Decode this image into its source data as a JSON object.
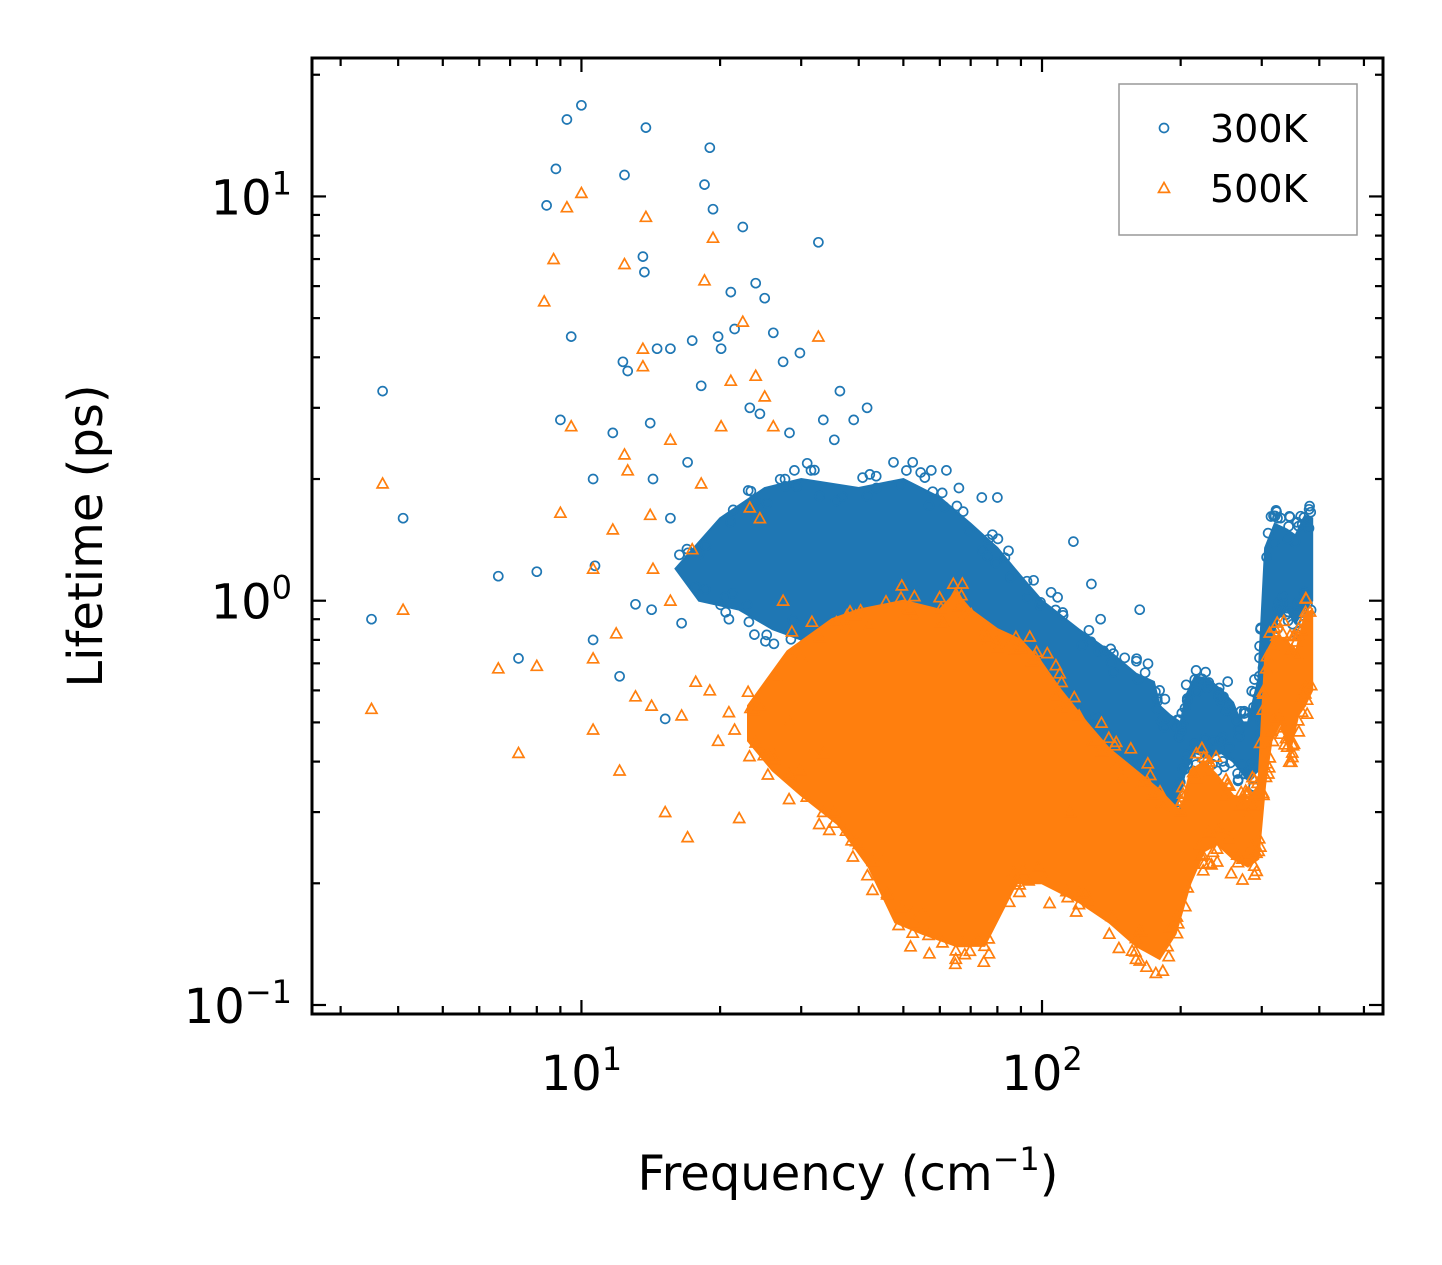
{
  "chart_data": {
    "type": "scatter",
    "title": "",
    "xlabel_main": "Frequency (cm",
    "xlabel_sup": "−1",
    "xlabel_close": ")",
    "ylabel": "Lifetime (ps)",
    "xscale": "log",
    "yscale": "log",
    "xlim": [
      2.6,
      550
    ],
    "ylim": [
      0.095,
      22
    ],
    "x_ticks": [
      {
        "value": 10,
        "base": "10",
        "exp": "1"
      },
      {
        "value": 100,
        "base": "10",
        "exp": "2"
      }
    ],
    "y_ticks": [
      {
        "value": 0.1,
        "base": "10",
        "exp": "−1"
      },
      {
        "value": 1,
        "base": "10",
        "exp": "0"
      },
      {
        "value": 10,
        "base": "10",
        "exp": "1"
      }
    ],
    "legend": {
      "position": "top-right"
    },
    "series": [
      {
        "name": "300K",
        "marker": "circle",
        "color": "#1f77b4",
        "points": [
          [
            3.5,
            0.9
          ],
          [
            3.7,
            3.3
          ],
          [
            4.1,
            1.6
          ],
          [
            6.6,
            1.15
          ],
          [
            7.3,
            0.72
          ],
          [
            8.0,
            1.18
          ],
          [
            8.4,
            9.5
          ],
          [
            8.8,
            11.7
          ],
          [
            9.0,
            2.8
          ],
          [
            9.3,
            15.5
          ],
          [
            9.5,
            4.5
          ],
          [
            10.0,
            16.8
          ],
          [
            10.6,
            2.0
          ],
          [
            10.7,
            1.22
          ],
          [
            10.6,
            0.8
          ],
          [
            11.7,
            2.6
          ],
          [
            12.1,
            0.65
          ],
          [
            12.3,
            3.9
          ],
          [
            12.4,
            11.3
          ],
          [
            12.6,
            3.7
          ],
          [
            13.1,
            0.98
          ],
          [
            13.6,
            7.1
          ],
          [
            13.7,
            6.5
          ],
          [
            13.8,
            14.8
          ],
          [
            14.1,
            2.75
          ],
          [
            14.2,
            0.95
          ],
          [
            14.3,
            2.0
          ],
          [
            14.6,
            4.2
          ],
          [
            15.2,
            0.51
          ],
          [
            15.6,
            1.6
          ],
          [
            15.6,
            4.2
          ],
          [
            16.5,
            0.88
          ],
          [
            17.0,
            2.2
          ],
          [
            17.4,
            4.4
          ],
          [
            17.7,
            1.08
          ],
          [
            18.2,
            3.4
          ],
          [
            18.5,
            10.7
          ],
          [
            19.0,
            13.2
          ],
          [
            19.3,
            9.3
          ],
          [
            19.8,
            4.5
          ],
          [
            20.1,
            4.2
          ],
          [
            20.9,
            0.9
          ],
          [
            21.1,
            5.8
          ],
          [
            21.5,
            4.7
          ],
          [
            22.4,
            8.4
          ],
          [
            23.2,
            3.0
          ],
          [
            23.9,
            6.1
          ],
          [
            24.4,
            2.9
          ],
          [
            25.0,
            5.6
          ],
          [
            26.1,
            4.6
          ],
          [
            27.4,
            3.9
          ],
          [
            28.3,
            2.6
          ],
          [
            29.0,
            2.1
          ],
          [
            29.8,
            4.1
          ],
          [
            31.5,
            2.1
          ],
          [
            32.7,
            7.7
          ],
          [
            33.5,
            2.8
          ],
          [
            35.4,
            2.5
          ],
          [
            36.4,
            3.3
          ],
          [
            39.0,
            2.8
          ],
          [
            41.7,
            3.0
          ],
          [
            43.7,
            1.9
          ],
          [
            47.6,
            2.2
          ],
          [
            52.4,
            2.2
          ],
          [
            57.5,
            2.1
          ],
          [
            62.0,
            2.1
          ],
          [
            66.0,
            1.9
          ],
          [
            74.0,
            1.8
          ],
          [
            80.0,
            1.8
          ],
          [
            117.0,
            1.4
          ],
          [
            128.0,
            1.1
          ],
          [
            134.0,
            0.9
          ],
          [
            163.0,
            0.95
          ]
        ],
        "band_upper": [
          [
            16,
            1.2
          ],
          [
            20,
            1.6
          ],
          [
            25,
            1.9
          ],
          [
            30,
            2.0
          ],
          [
            40,
            1.9
          ],
          [
            50,
            2.0
          ],
          [
            60,
            1.8
          ],
          [
            70,
            1.55
          ],
          [
            80,
            1.35
          ],
          [
            90,
            1.15
          ],
          [
            100,
            1.0
          ],
          [
            120,
            0.85
          ],
          [
            140,
            0.75
          ],
          [
            160,
            0.66
          ],
          [
            175,
            0.63
          ],
          [
            180,
            0.55
          ],
          [
            190,
            0.52
          ],
          [
            200,
            0.5
          ],
          [
            205,
            0.58
          ],
          [
            215,
            0.65
          ],
          [
            230,
            0.64
          ],
          [
            245,
            0.6
          ],
          [
            260,
            0.56
          ],
          [
            270,
            0.5
          ],
          [
            280,
            0.5
          ],
          [
            295,
            0.64
          ],
          [
            305,
            1.35
          ],
          [
            320,
            1.55
          ],
          [
            340,
            1.5
          ],
          [
            355,
            1.45
          ],
          [
            372,
            1.62
          ],
          [
            386,
            1.6
          ]
        ],
        "band_lower": [
          [
            386,
            1.0
          ],
          [
            370,
            0.95
          ],
          [
            355,
            0.88
          ],
          [
            340,
            0.95
          ],
          [
            325,
            0.9
          ],
          [
            310,
            0.75
          ],
          [
            300,
            0.62
          ],
          [
            295,
            0.38
          ],
          [
            280,
            0.36
          ],
          [
            260,
            0.4
          ],
          [
            245,
            0.42
          ],
          [
            230,
            0.41
          ],
          [
            215,
            0.42
          ],
          [
            205,
            0.38
          ],
          [
            195,
            0.3
          ],
          [
            185,
            0.26
          ],
          [
            170,
            0.35
          ],
          [
            150,
            0.4
          ],
          [
            130,
            0.48
          ],
          [
            110,
            0.52
          ],
          [
            100,
            0.58
          ],
          [
            85,
            0.62
          ],
          [
            70,
            0.6
          ],
          [
            55,
            0.62
          ],
          [
            45,
            0.68
          ],
          [
            38,
            0.72
          ],
          [
            32,
            0.78
          ],
          [
            26,
            0.85
          ],
          [
            22,
            0.95
          ],
          [
            18,
            1.0
          ]
        ]
      },
      {
        "name": "500K",
        "marker": "triangle",
        "color": "#ff7f0e",
        "points": [
          [
            3.5,
            0.54
          ],
          [
            3.7,
            1.95
          ],
          [
            4.1,
            0.95
          ],
          [
            6.6,
            0.68
          ],
          [
            7.3,
            0.42
          ],
          [
            8.0,
            0.69
          ],
          [
            8.3,
            5.5
          ],
          [
            8.7,
            7.0
          ],
          [
            9.0,
            1.65
          ],
          [
            9.3,
            9.4
          ],
          [
            9.5,
            2.7
          ],
          [
            10.0,
            10.2
          ],
          [
            10.6,
            1.2
          ],
          [
            10.6,
            0.72
          ],
          [
            10.6,
            0.48
          ],
          [
            11.7,
            1.5
          ],
          [
            11.9,
            0.83
          ],
          [
            12.1,
            0.38
          ],
          [
            12.4,
            6.8
          ],
          [
            12.4,
            2.3
          ],
          [
            12.6,
            2.1
          ],
          [
            13.1,
            0.58
          ],
          [
            13.6,
            4.2
          ],
          [
            13.6,
            3.8
          ],
          [
            13.8,
            8.9
          ],
          [
            14.1,
            1.63
          ],
          [
            14.2,
            0.55
          ],
          [
            14.3,
            1.2
          ],
          [
            15.2,
            0.3
          ],
          [
            15.6,
            1.0
          ],
          [
            15.6,
            2.5
          ],
          [
            16.5,
            0.52
          ],
          [
            17.0,
            0.26
          ],
          [
            17.4,
            1.34
          ],
          [
            17.7,
            0.63
          ],
          [
            18.2,
            1.95
          ],
          [
            18.5,
            6.2
          ],
          [
            19.0,
            0.6
          ],
          [
            19.3,
            7.9
          ],
          [
            19.8,
            0.45
          ],
          [
            20.1,
            2.7
          ],
          [
            20.9,
            0.53
          ],
          [
            21.1,
            3.5
          ],
          [
            21.5,
            0.48
          ],
          [
            22.4,
            4.9
          ],
          [
            22.0,
            0.29
          ],
          [
            23.2,
            1.7
          ],
          [
            23.9,
            3.6
          ],
          [
            24.4,
            1.6
          ],
          [
            25.0,
            3.2
          ],
          [
            26.1,
            2.7
          ],
          [
            27.4,
            1.0
          ],
          [
            28.3,
            0.5
          ],
          [
            29.8,
            0.38
          ],
          [
            32.7,
            4.5
          ],
          [
            33.5,
            0.42
          ],
          [
            35.4,
            0.3
          ],
          [
            40.0,
            0.25
          ],
          [
            45.0,
            0.23
          ],
          [
            52.0,
            0.17
          ],
          [
            55.0,
            0.17
          ],
          [
            65.0,
            0.13
          ],
          [
            75.0,
            0.14
          ],
          [
            115.0,
            0.3
          ],
          [
            140.0,
            0.15
          ],
          [
            160.0,
            0.13
          ]
        ],
        "band_upper": [
          [
            23,
            0.55
          ],
          [
            28,
            0.75
          ],
          [
            35,
            0.9
          ],
          [
            40,
            0.95
          ],
          [
            50,
            1.0
          ],
          [
            60,
            0.95
          ],
          [
            65,
            1.05
          ],
          [
            70,
            0.95
          ],
          [
            80,
            0.85
          ],
          [
            90,
            0.8
          ],
          [
            100,
            0.7
          ],
          [
            110,
            0.6
          ],
          [
            125,
            0.5
          ],
          [
            140,
            0.43
          ],
          [
            160,
            0.38
          ],
          [
            180,
            0.34
          ],
          [
            200,
            0.3
          ],
          [
            210,
            0.38
          ],
          [
            225,
            0.4
          ],
          [
            240,
            0.37
          ],
          [
            260,
            0.33
          ],
          [
            280,
            0.32
          ],
          [
            295,
            0.35
          ],
          [
            305,
            0.72
          ],
          [
            320,
            0.82
          ],
          [
            340,
            0.8
          ],
          [
            355,
            0.74
          ],
          [
            372,
            0.92
          ],
          [
            386,
            0.95
          ]
        ],
        "band_lower": [
          [
            386,
            0.6
          ],
          [
            372,
            0.55
          ],
          [
            360,
            0.52
          ],
          [
            345,
            0.42
          ],
          [
            330,
            0.5
          ],
          [
            315,
            0.45
          ],
          [
            305,
            0.35
          ],
          [
            295,
            0.23
          ],
          [
            280,
            0.22
          ],
          [
            260,
            0.23
          ],
          [
            240,
            0.25
          ],
          [
            225,
            0.24
          ],
          [
            210,
            0.2
          ],
          [
            195,
            0.15
          ],
          [
            180,
            0.13
          ],
          [
            160,
            0.14
          ],
          [
            140,
            0.16
          ],
          [
            120,
            0.18
          ],
          [
            100,
            0.2
          ],
          [
            88,
            0.2
          ],
          [
            75,
            0.14
          ],
          [
            65,
            0.14
          ],
          [
            55,
            0.15
          ],
          [
            48,
            0.16
          ],
          [
            42,
            0.22
          ],
          [
            36,
            0.28
          ],
          [
            30,
            0.33
          ],
          [
            26,
            0.38
          ],
          [
            23,
            0.45
          ]
        ]
      }
    ]
  }
}
